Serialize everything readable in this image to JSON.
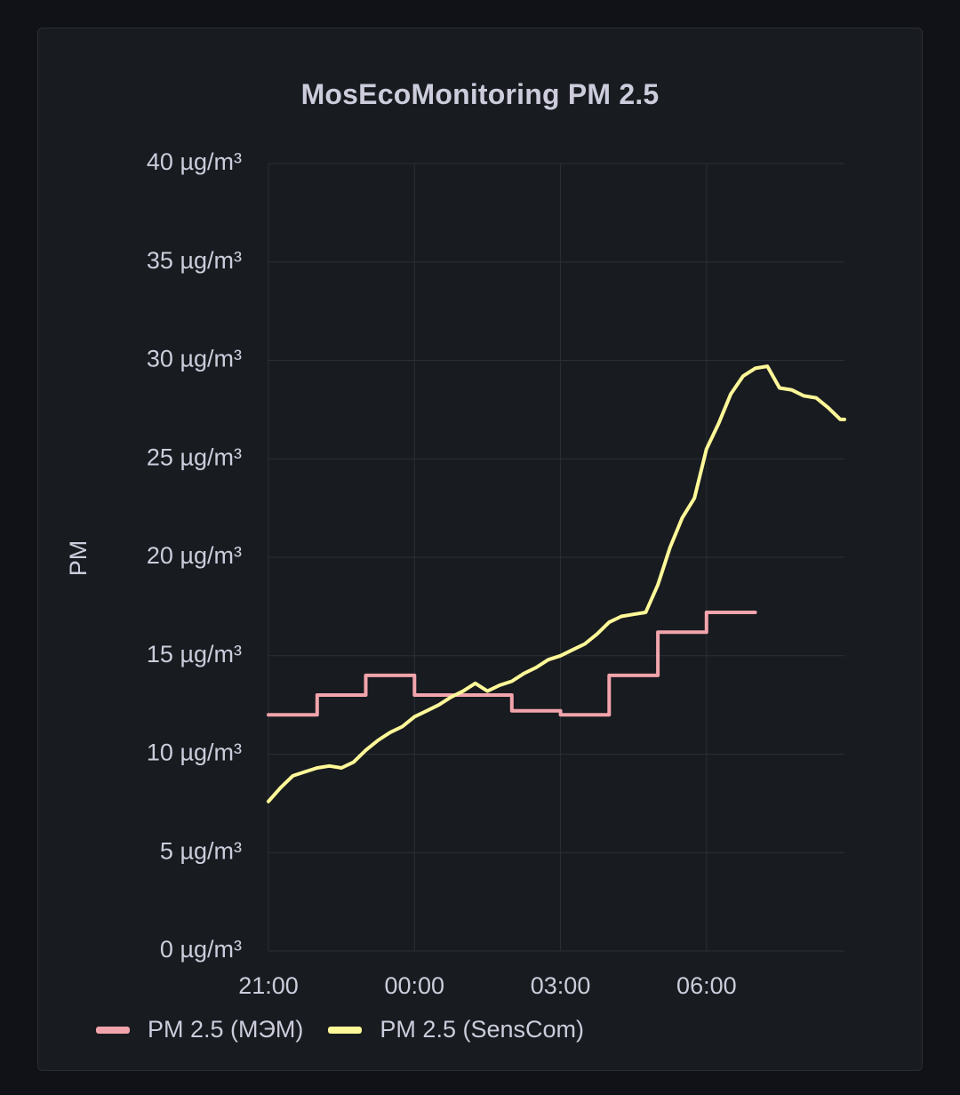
{
  "panel": {
    "title": "MosEcoMonitoring PM 2.5"
  },
  "colors": {
    "background": "#111217",
    "panel": "#181b1f",
    "grid": "#2c2f35",
    "text": "#ccccdc",
    "mem": "#f2a4ac",
    "senscom": "#fff899"
  },
  "chart_data": {
    "type": "line",
    "title": "MosEcoMonitoring PM 2.5",
    "ylabel": "PM",
    "xlabel": "",
    "ylim": [
      0,
      40
    ],
    "y_ticks": [
      0,
      5,
      10,
      15,
      20,
      25,
      30,
      35,
      40
    ],
    "y_tick_labels": [
      "0 µg/m³",
      "5 µg/m³",
      "10 µg/m³",
      "15 µg/m³",
      "20 µg/m³",
      "25 µg/m³",
      "30 µg/m³",
      "35 µg/m³",
      "40 µg/m³"
    ],
    "x_axis": "time",
    "xlim": [
      "21:00",
      "08:50"
    ],
    "x_ticks": [
      "21:00",
      "00:00",
      "03:00",
      "06:00"
    ],
    "grid": true,
    "legend_position": "bottom-left",
    "series": [
      {
        "name": "PM 2.5 (МЭМ)",
        "color": "#f2a4ac",
        "interpolation": "step-after",
        "points": [
          [
            "21:00",
            12
          ],
          [
            "22:00",
            13
          ],
          [
            "23:00",
            14
          ],
          [
            "00:00",
            13
          ],
          [
            "01:00",
            13
          ],
          [
            "02:00",
            12.2
          ],
          [
            "03:00",
            12
          ],
          [
            "04:00",
            14
          ],
          [
            "05:00",
            16.2
          ],
          [
            "06:00",
            17.2
          ],
          [
            "07:00",
            17.2
          ]
        ]
      },
      {
        "name": "PM 2.5 (SensCom)",
        "color": "#fff899",
        "interpolation": "linear",
        "points": [
          [
            "21:00",
            7.6
          ],
          [
            "21:15",
            8.3
          ],
          [
            "21:30",
            8.9
          ],
          [
            "21:45",
            9.1
          ],
          [
            "22:00",
            9.3
          ],
          [
            "22:15",
            9.4
          ],
          [
            "22:30",
            9.3
          ],
          [
            "22:45",
            9.6
          ],
          [
            "23:00",
            10.2
          ],
          [
            "23:15",
            10.7
          ],
          [
            "23:30",
            11.1
          ],
          [
            "23:45",
            11.4
          ],
          [
            "00:00",
            11.9
          ],
          [
            "00:15",
            12.2
          ],
          [
            "00:30",
            12.5
          ],
          [
            "00:45",
            12.9
          ],
          [
            "01:00",
            13.2
          ],
          [
            "01:15",
            13.6
          ],
          [
            "01:30",
            13.2
          ],
          [
            "01:45",
            13.5
          ],
          [
            "02:00",
            13.7
          ],
          [
            "02:15",
            14.1
          ],
          [
            "02:30",
            14.4
          ],
          [
            "02:45",
            14.8
          ],
          [
            "03:00",
            15.0
          ],
          [
            "03:15",
            15.3
          ],
          [
            "03:30",
            15.6
          ],
          [
            "03:45",
            16.1
          ],
          [
            "04:00",
            16.7
          ],
          [
            "04:15",
            17.0
          ],
          [
            "04:30",
            17.1
          ],
          [
            "04:45",
            17.2
          ],
          [
            "05:00",
            18.6
          ],
          [
            "05:15",
            20.5
          ],
          [
            "05:30",
            22.0
          ],
          [
            "05:45",
            23.0
          ],
          [
            "06:00",
            25.5
          ],
          [
            "06:15",
            26.8
          ],
          [
            "06:30",
            28.3
          ],
          [
            "06:45",
            29.2
          ],
          [
            "07:00",
            29.6
          ],
          [
            "07:15",
            29.7
          ],
          [
            "07:30",
            28.6
          ],
          [
            "07:45",
            28.5
          ],
          [
            "08:00",
            28.2
          ],
          [
            "08:15",
            28.1
          ],
          [
            "08:30",
            27.6
          ],
          [
            "08:45",
            27.0
          ],
          [
            "08:50",
            27.0
          ]
        ]
      }
    ]
  }
}
